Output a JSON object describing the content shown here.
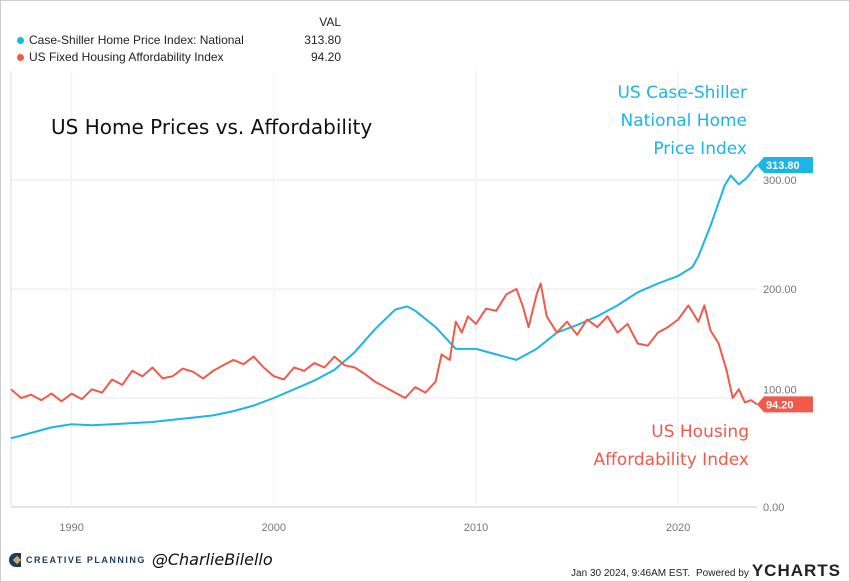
{
  "legend": {
    "header": "VAL",
    "items": [
      {
        "name": "Case-Shiller Home Price Index: National",
        "value": "313.80",
        "color": "#1bb5e6"
      },
      {
        "name": "US Fixed Housing Affordability Index",
        "value": "94.20",
        "color": "#f05a4a"
      }
    ]
  },
  "footer": {
    "brand": "CREATIVE PLANNING",
    "handle": "@CharlieBilello",
    "timestamp": "Jan 30 2024, 9:46AM EST.",
    "powered": "Powered by",
    "ycharts": "YCHARTS"
  },
  "chart_data": {
    "type": "line",
    "title": "US Home Prices vs. Affordability",
    "annotations": {
      "cs": [
        "US Case-Shiller",
        "National Home",
        "Price Index"
      ],
      "aff": [
        "US Housing",
        "Affordability Index"
      ]
    },
    "xlim": [
      1987,
      2023.9
    ],
    "ylim": [
      0,
      320
    ],
    "x_ticks": [
      {
        "v": 1990,
        "label": "1990"
      },
      {
        "v": 2000,
        "label": "2000"
      },
      {
        "v": 2010,
        "label": "2010"
      },
      {
        "v": 2020,
        "label": "2020"
      }
    ],
    "y_ticks": [
      {
        "v": 0,
        "label": "0.00"
      },
      {
        "v": 100,
        "label": "100.00"
      },
      {
        "v": 200,
        "label": "200.00"
      },
      {
        "v": 300,
        "label": "300.00"
      }
    ],
    "series": [
      {
        "name": "Case-Shiller Home Price Index: National",
        "color": "#1bb5e6",
        "last_label": "313.80",
        "points": [
          [
            1987,
            63
          ],
          [
            1988,
            68
          ],
          [
            1989,
            73
          ],
          [
            1990,
            76
          ],
          [
            1991,
            75
          ],
          [
            1992,
            76
          ],
          [
            1993,
            77
          ],
          [
            1994,
            78
          ],
          [
            1995,
            80
          ],
          [
            1996,
            82
          ],
          [
            1997,
            84
          ],
          [
            1998,
            88
          ],
          [
            1999,
            93
          ],
          [
            2000,
            100
          ],
          [
            2001,
            108
          ],
          [
            2002,
            116
          ],
          [
            2003,
            126
          ],
          [
            2004,
            142
          ],
          [
            2005,
            163
          ],
          [
            2006,
            181
          ],
          [
            2006.6,
            184
          ],
          [
            2007,
            180
          ],
          [
            2008,
            165
          ],
          [
            2009,
            145
          ],
          [
            2010,
            145
          ],
          [
            2011,
            140
          ],
          [
            2012,
            135
          ],
          [
            2013,
            145
          ],
          [
            2014,
            160
          ],
          [
            2015,
            167
          ],
          [
            2016,
            175
          ],
          [
            2017,
            185
          ],
          [
            2018,
            197
          ],
          [
            2019,
            205
          ],
          [
            2020,
            212
          ],
          [
            2020.7,
            220
          ],
          [
            2021,
            230
          ],
          [
            2021.6,
            258
          ],
          [
            2022.3,
            295
          ],
          [
            2022.6,
            304
          ],
          [
            2023,
            296
          ],
          [
            2023.4,
            302
          ],
          [
            2023.9,
            313.8
          ]
        ]
      },
      {
        "name": "US Fixed Housing Affordability Index",
        "color": "#f05a4a",
        "last_label": "94.20",
        "points": [
          [
            1987,
            108
          ],
          [
            1987.5,
            100
          ],
          [
            1988,
            103
          ],
          [
            1988.5,
            98
          ],
          [
            1989,
            104
          ],
          [
            1989.5,
            97
          ],
          [
            1990,
            104
          ],
          [
            1990.5,
            99
          ],
          [
            1991,
            108
          ],
          [
            1991.5,
            105
          ],
          [
            1992,
            117
          ],
          [
            1992.5,
            112
          ],
          [
            1993,
            125
          ],
          [
            1993.5,
            120
          ],
          [
            1994,
            128
          ],
          [
            1994.5,
            118
          ],
          [
            1995,
            120
          ],
          [
            1995.5,
            127
          ],
          [
            1996,
            124
          ],
          [
            1996.5,
            118
          ],
          [
            1997,
            125
          ],
          [
            1997.5,
            130
          ],
          [
            1998,
            135
          ],
          [
            1998.5,
            131
          ],
          [
            1999,
            138
          ],
          [
            1999.5,
            128
          ],
          [
            2000,
            120
          ],
          [
            2000.5,
            117
          ],
          [
            2001,
            128
          ],
          [
            2001.5,
            125
          ],
          [
            2002,
            132
          ],
          [
            2002.5,
            128
          ],
          [
            2003,
            138
          ],
          [
            2003.5,
            130
          ],
          [
            2004,
            128
          ],
          [
            2004.5,
            122
          ],
          [
            2005,
            115
          ],
          [
            2005.5,
            110
          ],
          [
            2006,
            105
          ],
          [
            2006.5,
            100
          ],
          [
            2007,
            110
          ],
          [
            2007.5,
            105
          ],
          [
            2008,
            115
          ],
          [
            2008.3,
            140
          ],
          [
            2008.7,
            135
          ],
          [
            2009,
            170
          ],
          [
            2009.3,
            160
          ],
          [
            2009.6,
            175
          ],
          [
            2010,
            168
          ],
          [
            2010.5,
            182
          ],
          [
            2011,
            180
          ],
          [
            2011.5,
            195
          ],
          [
            2012,
            200
          ],
          [
            2012.3,
            185
          ],
          [
            2012.6,
            165
          ],
          [
            2013,
            195
          ],
          [
            2013.2,
            205
          ],
          [
            2013.5,
            175
          ],
          [
            2014,
            160
          ],
          [
            2014.5,
            170
          ],
          [
            2015,
            158
          ],
          [
            2015.5,
            172
          ],
          [
            2016,
            165
          ],
          [
            2016.5,
            175
          ],
          [
            2017,
            160
          ],
          [
            2017.5,
            168
          ],
          [
            2018,
            150
          ],
          [
            2018.5,
            148
          ],
          [
            2019,
            160
          ],
          [
            2019.5,
            165
          ],
          [
            2020,
            172
          ],
          [
            2020.5,
            185
          ],
          [
            2021,
            170
          ],
          [
            2021.3,
            185
          ],
          [
            2021.6,
            162
          ],
          [
            2022,
            150
          ],
          [
            2022.4,
            125
          ],
          [
            2022.7,
            100
          ],
          [
            2023,
            108
          ],
          [
            2023.3,
            96
          ],
          [
            2023.6,
            98
          ],
          [
            2023.9,
            94.2
          ]
        ]
      }
    ]
  }
}
